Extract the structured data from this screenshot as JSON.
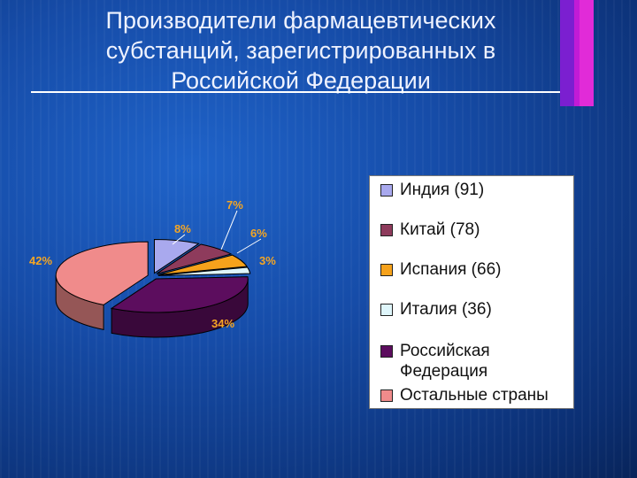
{
  "slide": {
    "title_lines": [
      "Производители фармацевтических",
      "субстанций, зарегистрированных в",
      "Российской Федерации"
    ]
  },
  "colors": {
    "background": "#164ca8",
    "title_text": "#eef2ff",
    "pct_label": "#f5a623",
    "deco_stripes": [
      "#7b1fd0",
      "#c21bd6",
      "#e12bd8"
    ]
  },
  "chart_data": {
    "type": "pie",
    "style": "3d-exploded",
    "slices": [
      {
        "label": "Индия (91)",
        "value": 8,
        "pct_label": "8%",
        "color": "#a9a9ee"
      },
      {
        "label": "Китай (78)",
        "value": 7,
        "pct_label": "7%",
        "color": "#8e3b5c"
      },
      {
        "label": "Испания (66)",
        "value": 6,
        "pct_label": "6%",
        "color": "#f6a21c"
      },
      {
        "label": "Италия (36)",
        "value": 3,
        "pct_label": "3%",
        "color": "#dff6fb"
      },
      {
        "label": "Российская Федерация",
        "value": 34,
        "pct_label": "34%",
        "color": "#5c0d5e"
      },
      {
        "label": "Остальные страны",
        "value": 42,
        "pct_label": "42%",
        "color": "#f08b8b"
      }
    ],
    "legend_position": "right"
  }
}
